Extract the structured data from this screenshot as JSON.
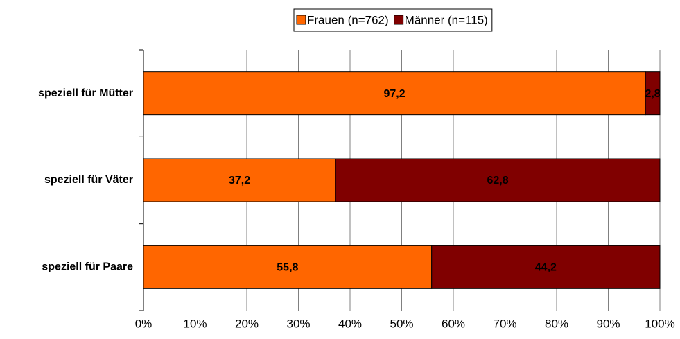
{
  "chart_data": {
    "type": "stacked-barh",
    "categories": [
      "speziell für Mütter",
      "speziell für Väter",
      "speziell für Paare"
    ],
    "series": [
      {
        "name": "Frauen (n=762)",
        "color": "#ff6600",
        "values": [
          97.2,
          37.2,
          55.8
        ],
        "value_labels": [
          "97,2",
          "37,2",
          "55,8"
        ]
      },
      {
        "name": "Männer (n=115)",
        "color": "#800000",
        "values": [
          2.8,
          62.8,
          44.2
        ],
        "value_labels": [
          "2,8",
          "62,8",
          "44,2"
        ]
      }
    ],
    "xlim": [
      0,
      100
    ],
    "xticks": [
      {
        "value": 0,
        "label": "0%"
      },
      {
        "value": 10,
        "label": "10%"
      },
      {
        "value": 20,
        "label": "20%"
      },
      {
        "value": 30,
        "label": "30%"
      },
      {
        "value": 40,
        "label": "40%"
      },
      {
        "value": 50,
        "label": "50%"
      },
      {
        "value": 60,
        "label": "60%"
      },
      {
        "value": 70,
        "label": "70%"
      },
      {
        "value": 80,
        "label": "80%"
      },
      {
        "value": 90,
        "label": "90%"
      },
      {
        "value": 100,
        "label": "100%"
      }
    ],
    "grid": true,
    "legend": "top"
  }
}
